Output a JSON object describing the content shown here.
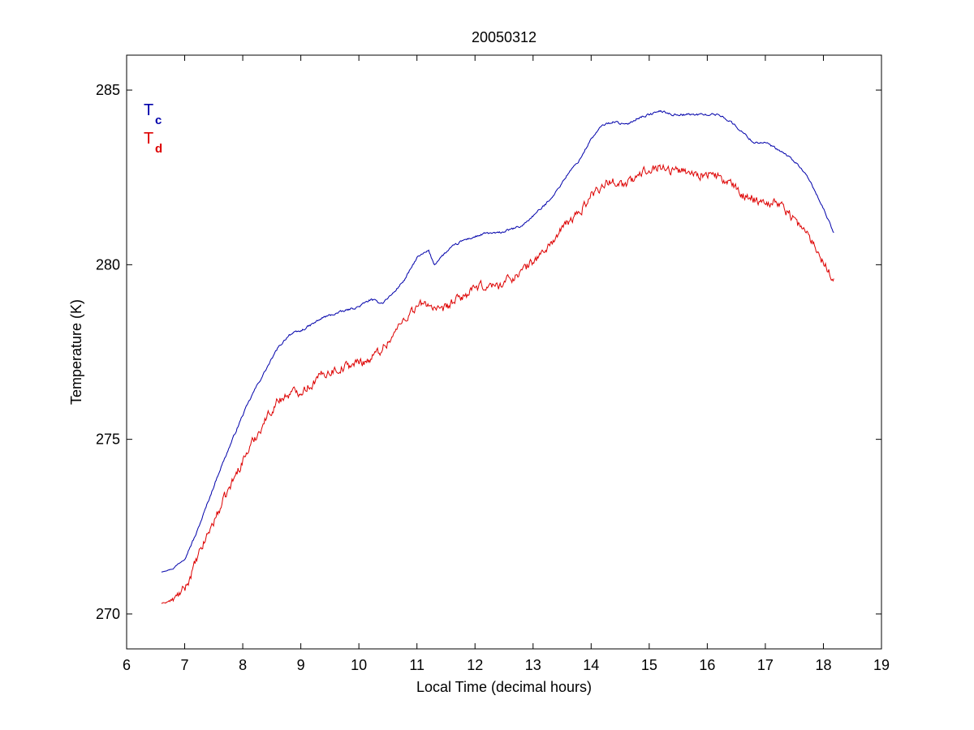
{
  "chart_data": {
    "type": "line",
    "title": "20050312",
    "xlabel": "Local Time (decimal hours)",
    "ylabel": "Temperature (K)",
    "xlim": [
      6,
      19
    ],
    "ylim": [
      269,
      286
    ],
    "xticks": [
      6,
      7,
      8,
      9,
      10,
      11,
      12,
      13,
      14,
      15,
      16,
      17,
      18,
      19
    ],
    "yticks": [
      270,
      275,
      280,
      285
    ],
    "grid": false,
    "legend_position": "top-left",
    "series": [
      {
        "name": "T",
        "subscript": "c",
        "color": "#0000aa",
        "noise": 0.06,
        "x": [
          6.6,
          6.8,
          7.0,
          7.2,
          7.4,
          7.6,
          7.8,
          8.0,
          8.2,
          8.4,
          8.6,
          8.8,
          9.0,
          9.2,
          9.4,
          9.6,
          9.8,
          10.0,
          10.2,
          10.4,
          10.6,
          10.8,
          11.0,
          11.2,
          11.3,
          11.4,
          11.6,
          11.8,
          12.0,
          12.2,
          12.4,
          12.6,
          12.8,
          13.0,
          13.2,
          13.4,
          13.6,
          13.8,
          14.0,
          14.2,
          14.4,
          14.6,
          14.8,
          15.0,
          15.2,
          15.4,
          15.6,
          15.8,
          16.0,
          16.2,
          16.4,
          16.6,
          16.8,
          17.0,
          17.2,
          17.4,
          17.6,
          17.8,
          18.0,
          18.18
        ],
        "y": [
          271.2,
          271.3,
          271.6,
          272.3,
          273.2,
          274.1,
          274.9,
          275.7,
          276.4,
          277.0,
          277.6,
          278.0,
          278.1,
          278.3,
          278.5,
          278.6,
          278.7,
          278.8,
          279.0,
          278.9,
          279.2,
          279.6,
          280.2,
          280.4,
          280.0,
          280.2,
          280.5,
          280.7,
          280.8,
          280.9,
          280.9,
          281.0,
          281.1,
          281.4,
          281.7,
          282.1,
          282.6,
          283.0,
          283.6,
          284.0,
          284.1,
          284.0,
          284.2,
          284.3,
          284.4,
          284.3,
          284.3,
          284.3,
          284.3,
          284.3,
          284.1,
          283.8,
          283.5,
          283.5,
          283.3,
          283.1,
          282.8,
          282.3,
          281.6,
          280.9
        ]
      },
      {
        "name": "T",
        "subscript": "d",
        "color": "#dd0000",
        "noise": 0.25,
        "x": [
          6.6,
          6.8,
          7.0,
          7.2,
          7.4,
          7.6,
          7.8,
          8.0,
          8.2,
          8.4,
          8.6,
          8.8,
          9.0,
          9.2,
          9.4,
          9.6,
          9.8,
          10.0,
          10.2,
          10.4,
          10.6,
          10.8,
          11.0,
          11.2,
          11.4,
          11.6,
          11.8,
          12.0,
          12.2,
          12.4,
          12.6,
          12.8,
          13.0,
          13.2,
          13.4,
          13.6,
          13.8,
          14.0,
          14.2,
          14.4,
          14.6,
          14.8,
          15.0,
          15.2,
          15.4,
          15.6,
          15.8,
          16.0,
          16.2,
          16.4,
          16.6,
          16.8,
          17.0,
          17.2,
          17.4,
          17.6,
          17.8,
          18.0,
          18.18
        ],
        "y": [
          270.3,
          270.4,
          270.7,
          271.5,
          272.3,
          273.0,
          273.7,
          274.4,
          275.0,
          275.6,
          276.1,
          276.3,
          276.4,
          276.6,
          276.9,
          277.0,
          277.1,
          277.2,
          277.3,
          277.6,
          278.0,
          278.5,
          278.8,
          278.9,
          278.6,
          278.9,
          279.1,
          279.3,
          279.4,
          279.4,
          279.6,
          279.8,
          280.1,
          280.4,
          280.8,
          281.2,
          281.5,
          282.0,
          282.3,
          282.4,
          282.3,
          282.5,
          282.8,
          282.8,
          282.7,
          282.7,
          282.6,
          282.6,
          282.5,
          282.3,
          282.0,
          281.9,
          281.8,
          281.8,
          281.5,
          281.1,
          280.7,
          280.1,
          279.6
        ]
      }
    ]
  }
}
